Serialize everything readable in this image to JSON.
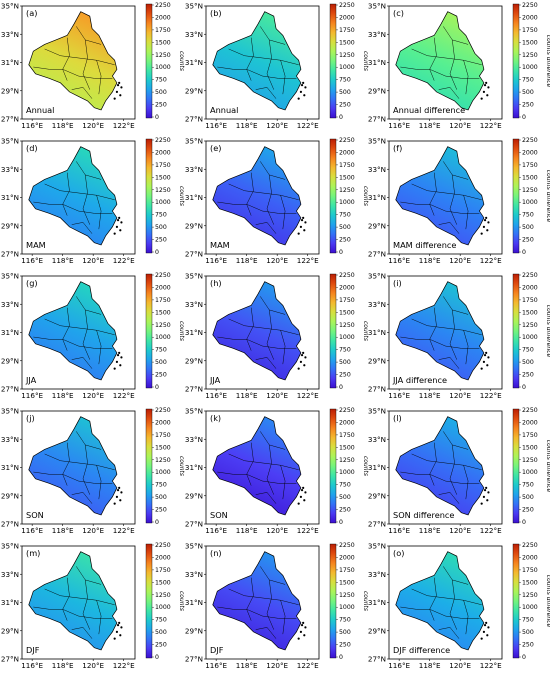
{
  "figure": {
    "axis_ticks": {
      "lat": [
        "35°N",
        "33°N",
        "31°N",
        "29°N",
        "27°N"
      ],
      "lon": [
        "116°E",
        "118°E",
        "120°E",
        "122°E"
      ]
    },
    "colorbar": {
      "ticks": [
        "2250",
        "2000",
        "1750",
        "1500",
        "1250",
        "1000",
        "750",
        "500",
        "250",
        "0"
      ]
    },
    "panels": [
      {
        "tag": "(a)",
        "label": "Annual",
        "cb_title": "counts",
        "level": 0.68
      },
      {
        "tag": "(b)",
        "label": "Annual",
        "cb_title": "counts",
        "level": 0.32
      },
      {
        "tag": "(c)",
        "label": "Annual difference",
        "cb_title": "counts difference",
        "level": 0.46
      },
      {
        "tag": "(d)",
        "label": "MAM",
        "cb_title": "counts",
        "level": 0.26
      },
      {
        "tag": "(e)",
        "label": "MAM",
        "cb_title": "counts",
        "level": 0.14
      },
      {
        "tag": "(f)",
        "label": "MAM difference",
        "cb_title": "counts difference",
        "level": 0.19
      },
      {
        "tag": "(g)",
        "label": "JJA",
        "cb_title": "counts",
        "level": 0.25
      },
      {
        "tag": "(h)",
        "label": "JJA",
        "cb_title": "counts",
        "level": 0.12
      },
      {
        "tag": "(i)",
        "label": "JJA difference",
        "cb_title": "counts difference",
        "level": 0.2
      },
      {
        "tag": "(j)",
        "label": "SON",
        "cb_title": "counts",
        "level": 0.2
      },
      {
        "tag": "(k)",
        "label": "SON",
        "cb_title": "counts",
        "level": 0.09
      },
      {
        "tag": "(l)",
        "label": "SON difference",
        "cb_title": "counts difference",
        "level": 0.16
      },
      {
        "tag": "(m)",
        "label": "DJF",
        "cb_title": "counts",
        "level": 0.29
      },
      {
        "tag": "(n)",
        "label": "DJF",
        "cb_title": "counts",
        "level": 0.11
      },
      {
        "tag": "(o)",
        "label": "DJF difference",
        "cb_title": "counts difference",
        "level": 0.27
      }
    ],
    "colormap": [
      "#3b0fcf",
      "#4c3ef5",
      "#2f7cf6",
      "#1bb0e8",
      "#20d6c0",
      "#54ef93",
      "#96f967",
      "#c9ec45",
      "#f2c632",
      "#f98d22",
      "#e24f10",
      "#ba1e05"
    ]
  }
}
